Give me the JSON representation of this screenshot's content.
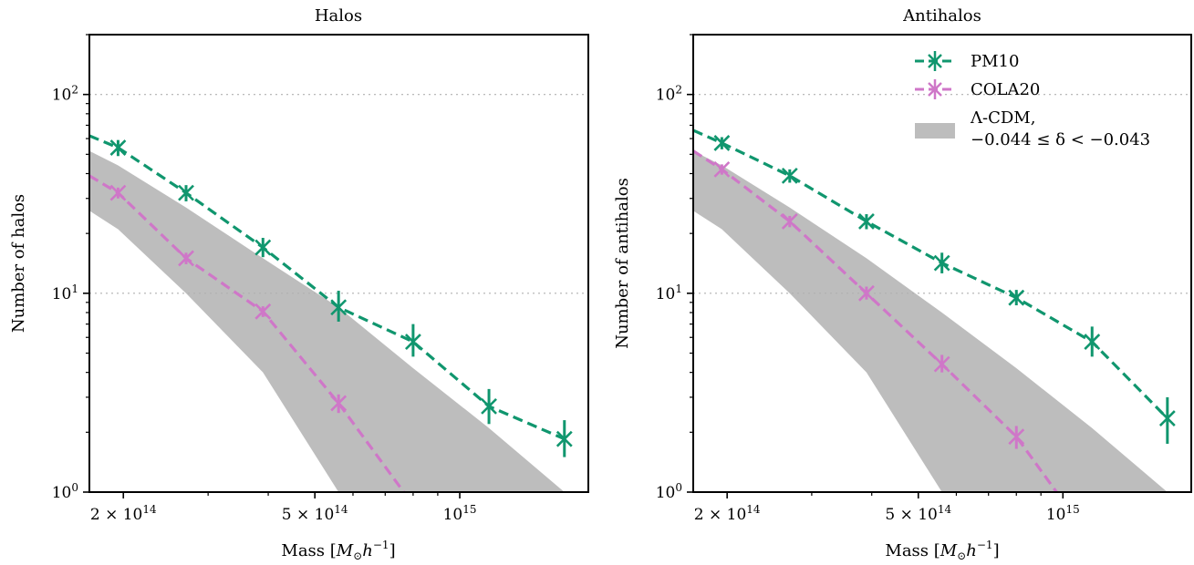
{
  "figure": {
    "colors": {
      "pm10": "#10966e",
      "cola20": "#cf77c8",
      "band": "#bdbdbd"
    }
  },
  "chart_data": [
    {
      "type": "line",
      "title": "Halos",
      "xlabel": "Mass [M⊙h⁻¹]",
      "ylabel": "Number of halos",
      "xscale": "log",
      "yscale": "log",
      "xlim": [
        170000000000000.0,
        1850000000000000.0
      ],
      "ylim": [
        1,
        200
      ],
      "xticks": [
        {
          "value": 200000000000000.0,
          "label": "2 × 10¹⁴"
        },
        {
          "value": 500000000000000.0,
          "label": "5 × 10¹⁴"
        },
        {
          "value": 1000000000000000.0,
          "label": "10¹⁵"
        }
      ],
      "yticks": [
        {
          "value": 1,
          "label": "10⁰"
        },
        {
          "value": 10,
          "label": "10¹"
        },
        {
          "value": 100,
          "label": "10²"
        }
      ],
      "grid": "horizontal dotted at major y ticks",
      "series": [
        {
          "name": "PM10",
          "style": "dashed",
          "color": "#10966e",
          "x": [
            195000000000000.0,
            270000000000000.0,
            390000000000000.0,
            560000000000000.0,
            800000000000000.0,
            1150000000000000.0,
            1650000000000000.0
          ],
          "y": [
            54,
            32,
            17,
            8.5,
            5.7,
            2.7,
            1.85
          ],
          "yerr_low": [
            49,
            29,
            15.2,
            7.2,
            4.8,
            2.2,
            1.5
          ],
          "yerr_high": [
            59,
            35,
            19,
            10.3,
            7.0,
            3.3,
            2.3
          ],
          "line_start": [
            170000000000000.0,
            62
          ]
        },
        {
          "name": "COLA20",
          "style": "dashed",
          "color": "#cf77c8",
          "x": [
            195000000000000.0,
            270000000000000.0,
            390000000000000.0,
            560000000000000.0
          ],
          "y": [
            32,
            15,
            8.1,
            2.8
          ],
          "yerr_low": [
            30,
            14,
            7.6,
            2.5
          ],
          "yerr_high": [
            34,
            16,
            8.6,
            3.1
          ],
          "line_start": [
            170000000000000.0,
            39
          ],
          "line_end": [
            765000000000000.0,
            1.0
          ]
        }
      ],
      "band": {
        "name": "Λ-CDM, −0.044 ≤ δ < −0.043",
        "upper": [
          [
            170000000000000.0,
            52
          ],
          [
            195000000000000.0,
            44
          ],
          [
            270000000000000.0,
            27
          ],
          [
            390000000000000.0,
            15
          ],
          [
            560000000000000.0,
            8.5
          ],
          [
            800000000000000.0,
            4.2
          ],
          [
            1150000000000000.0,
            2.1
          ],
          [
            1650000000000000.0,
            1.0
          ]
        ],
        "lower": [
          [
            170000000000000.0,
            26
          ],
          [
            195000000000000.0,
            21
          ],
          [
            270000000000000.0,
            10
          ],
          [
            390000000000000.0,
            4.0
          ],
          [
            560000000000000.0,
            1.0
          ]
        ]
      }
    },
    {
      "type": "line",
      "title": "Antihalos",
      "xlabel": "Mass [M⊙h⁻¹]",
      "ylabel": "Number of antihalos",
      "xscale": "log",
      "yscale": "log",
      "xlim": [
        170000000000000.0,
        1850000000000000.0
      ],
      "ylim": [
        1,
        200
      ],
      "xticks": [
        {
          "value": 200000000000000.0,
          "label": "2 × 10¹⁴"
        },
        {
          "value": 500000000000000.0,
          "label": "5 × 10¹⁴"
        },
        {
          "value": 1000000000000000.0,
          "label": "10¹⁵"
        }
      ],
      "yticks": [
        {
          "value": 1,
          "label": "10⁰"
        },
        {
          "value": 10,
          "label": "10¹"
        },
        {
          "value": 100,
          "label": "10²"
        }
      ],
      "grid": "horizontal dotted at major y ticks",
      "legend": {
        "placement": "top-right",
        "entries": [
          {
            "label": "PM10",
            "kind": "line"
          },
          {
            "label": "COLA20",
            "kind": "line"
          },
          {
            "label_line1": "Λ-CDM,",
            "label_line2": "−0.044 ≤ δ < −0.043",
            "kind": "patch"
          }
        ]
      },
      "series": [
        {
          "name": "PM10",
          "style": "dashed",
          "color": "#10966e",
          "x": [
            195000000000000.0,
            270000000000000.0,
            390000000000000.0,
            560000000000000.0,
            800000000000000.0,
            1150000000000000.0,
            1650000000000000.0
          ],
          "y": [
            57,
            39,
            23,
            14.2,
            9.5,
            5.7,
            2.35
          ],
          "yerr_low": [
            53,
            36,
            21,
            12.6,
            8.7,
            4.8,
            1.75
          ],
          "yerr_high": [
            61,
            42,
            25,
            16,
            10.4,
            6.8,
            3.0
          ],
          "line_start": [
            170000000000000.0,
            66
          ]
        },
        {
          "name": "COLA20",
          "style": "dashed",
          "color": "#cf77c8",
          "x": [
            195000000000000.0,
            270000000000000.0,
            390000000000000.0,
            560000000000000.0,
            800000000000000.0
          ],
          "y": [
            42,
            23,
            10,
            4.4,
            1.9
          ],
          "yerr_low": [
            39.5,
            21.5,
            9.3,
            4.0,
            1.65
          ],
          "yerr_high": [
            44.5,
            24.5,
            10.8,
            4.9,
            2.15
          ],
          "line_start": [
            170000000000000.0,
            52
          ],
          "line_end": [
            970000000000000.0,
            1.0
          ]
        }
      ],
      "band": {
        "name": "Λ-CDM, −0.044 ≤ δ < −0.043",
        "upper": [
          [
            170000000000000.0,
            52
          ],
          [
            195000000000000.0,
            44
          ],
          [
            270000000000000.0,
            27
          ],
          [
            390000000000000.0,
            15
          ],
          [
            560000000000000.0,
            8.0
          ],
          [
            800000000000000.0,
            4.2
          ],
          [
            1150000000000000.0,
            2.1
          ],
          [
            1650000000000000.0,
            1.0
          ]
        ],
        "lower": [
          [
            170000000000000.0,
            26
          ],
          [
            195000000000000.0,
            21
          ],
          [
            270000000000000.0,
            10
          ],
          [
            390000000000000.0,
            4.0
          ],
          [
            560000000000000.0,
            1.0
          ]
        ]
      }
    }
  ]
}
